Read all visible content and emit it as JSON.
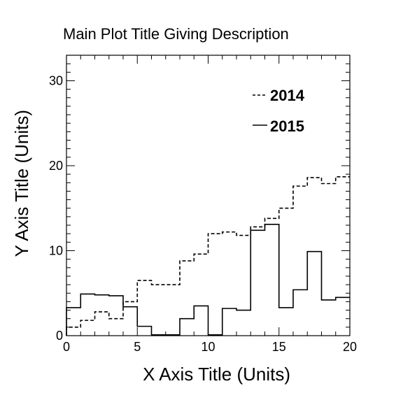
{
  "chart_data": {
    "type": "line",
    "title": "Main Plot Title Giving Description",
    "xlabel": "X Axis Title (Units)",
    "ylabel": "Y Axis Title (Units)",
    "xlim": [
      0,
      20
    ],
    "ylim": [
      0,
      33
    ],
    "x_ticks": [
      "0",
      "5",
      "10",
      "15",
      "20"
    ],
    "y_ticks": [
      "0",
      "10",
      "20",
      "30"
    ],
    "grid": false,
    "legend_position": "top-right",
    "bin_edges": [
      0,
      1,
      2,
      3,
      4,
      5,
      6,
      7,
      8,
      9,
      10,
      11,
      12,
      13,
      14,
      15,
      16,
      17,
      18,
      19,
      20
    ],
    "series": [
      {
        "name": "2014",
        "style": "dashed",
        "values": [
          1.0,
          1.8,
          2.8,
          2.0,
          4.0,
          6.5,
          6.0,
          6.0,
          8.8,
          9.6,
          12.0,
          12.2,
          11.8,
          12.8,
          13.8,
          15.0,
          17.6,
          18.6,
          17.9,
          18.7
        ]
      },
      {
        "name": "2015",
        "style": "solid",
        "values": [
          3.3,
          4.9,
          4.8,
          4.7,
          3.4,
          1.1,
          0.1,
          0.1,
          2.0,
          3.5,
          0.1,
          3.2,
          3.0,
          12.4,
          13.1,
          3.3,
          5.4,
          9.9,
          4.2,
          4.5
        ]
      }
    ]
  }
}
